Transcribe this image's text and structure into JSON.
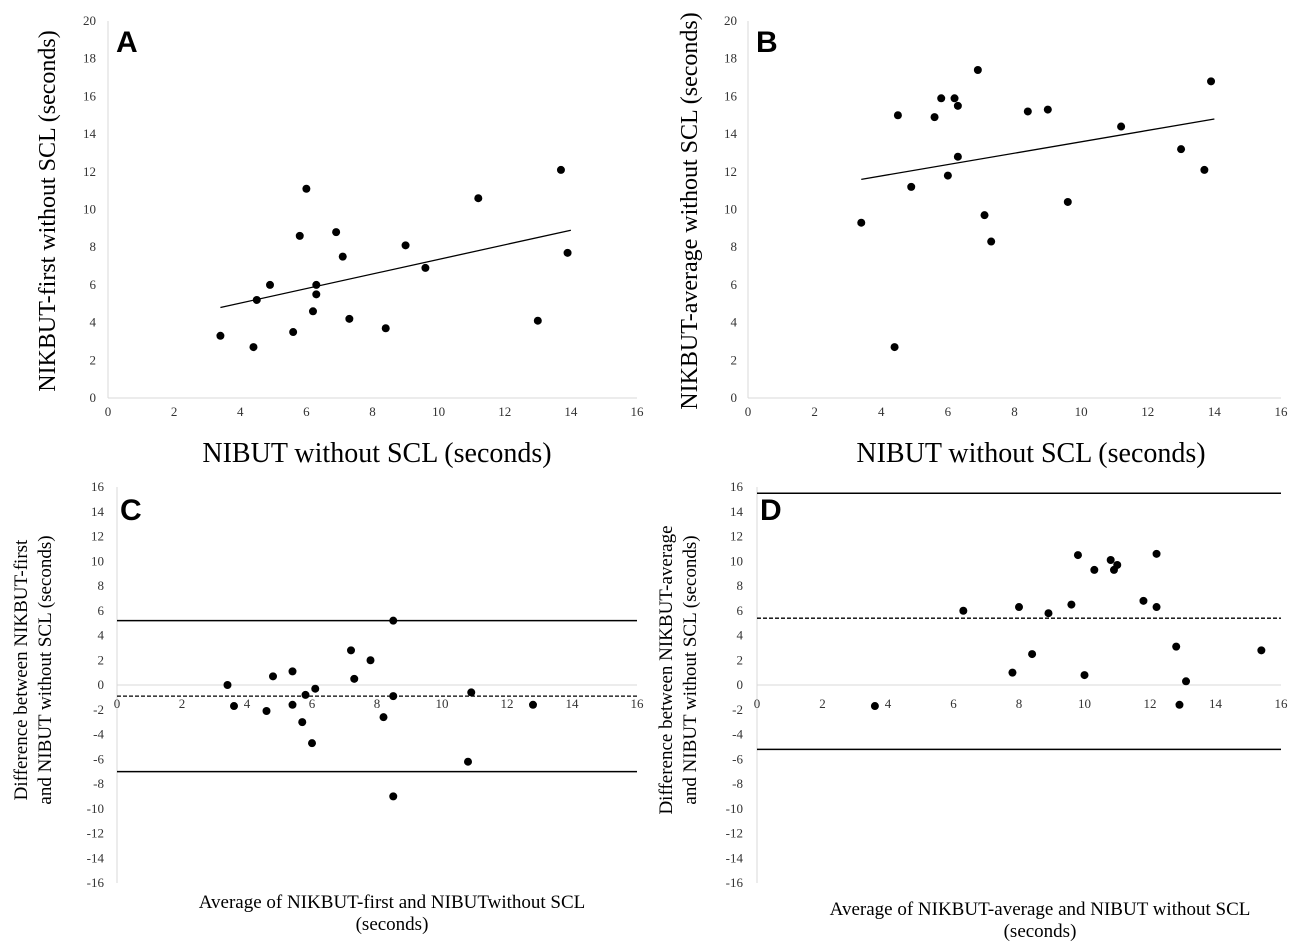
{
  "chart_data": [
    {
      "panel": "A",
      "type": "scatter",
      "xlabel": "NIBUT without SCL (seconds)",
      "ylabel": "NIKBUT-first without SCL (seconds)",
      "xlim": [
        0,
        16
      ],
      "ylim": [
        0,
        20
      ],
      "xticks": [
        0,
        2,
        4,
        6,
        8,
        10,
        12,
        14,
        16
      ],
      "yticks": [
        0,
        2,
        4,
        6,
        8,
        10,
        12,
        14,
        16,
        18,
        20
      ],
      "grid": false,
      "trendline": {
        "x": [
          3.4,
          14.0
        ],
        "y": [
          4.8,
          8.9
        ]
      },
      "points": [
        [
          3.4,
          3.3
        ],
        [
          4.4,
          2.7
        ],
        [
          4.5,
          5.2
        ],
        [
          4.9,
          6.0
        ],
        [
          5.6,
          3.5
        ],
        [
          5.8,
          8.6
        ],
        [
          6.0,
          11.1
        ],
        [
          6.2,
          4.6
        ],
        [
          6.3,
          6.0
        ],
        [
          6.3,
          5.5
        ],
        [
          6.9,
          8.8
        ],
        [
          7.1,
          7.5
        ],
        [
          7.3,
          4.2
        ],
        [
          8.4,
          3.7
        ],
        [
          9.0,
          8.1
        ],
        [
          9.6,
          6.9
        ],
        [
          11.2,
          10.6
        ],
        [
          13.0,
          4.1
        ],
        [
          13.7,
          12.1
        ],
        [
          13.9,
          7.7
        ]
      ]
    },
    {
      "panel": "B",
      "type": "scatter",
      "xlabel": "NIBUT without SCL (seconds)",
      "ylabel": "NIKBUT-average without SCL (seconds)",
      "xlim": [
        0,
        16
      ],
      "ylim": [
        0,
        20
      ],
      "xticks": [
        0,
        2,
        4,
        6,
        8,
        10,
        12,
        14,
        16
      ],
      "yticks": [
        0,
        2,
        4,
        6,
        8,
        10,
        12,
        14,
        16,
        18,
        20
      ],
      "grid": false,
      "trendline": {
        "x": [
          3.4,
          14.0
        ],
        "y": [
          11.6,
          14.8
        ]
      },
      "points": [
        [
          3.4,
          9.3
        ],
        [
          4.4,
          2.7
        ],
        [
          4.5,
          15.0
        ],
        [
          4.9,
          11.2
        ],
        [
          5.6,
          14.9
        ],
        [
          5.8,
          15.9
        ],
        [
          6.0,
          11.8
        ],
        [
          6.2,
          15.9
        ],
        [
          6.3,
          15.5
        ],
        [
          6.3,
          12.8
        ],
        [
          6.9,
          17.4
        ],
        [
          7.1,
          9.7
        ],
        [
          7.3,
          8.3
        ],
        [
          8.4,
          15.2
        ],
        [
          9.0,
          15.3
        ],
        [
          9.6,
          10.4
        ],
        [
          11.2,
          14.4
        ],
        [
          13.0,
          13.2
        ],
        [
          13.7,
          12.1
        ],
        [
          13.9,
          16.8
        ]
      ]
    },
    {
      "panel": "C",
      "type": "scatter",
      "xlabel_line1": "Average of NIKBUT-first and NIBUTwithout SCL",
      "xlabel_line2": "(seconds)",
      "ylabel_line1": "Difference between NIKBUT-first",
      "ylabel_line2": "and NIBUT without SCL (seconds)",
      "xlim": [
        0,
        16
      ],
      "ylim": [
        -16,
        16
      ],
      "xticks": [
        0,
        2,
        4,
        6,
        8,
        10,
        12,
        14,
        16
      ],
      "yticks": [
        -16,
        -14,
        -12,
        -10,
        -8,
        -6,
        -4,
        -2,
        0,
        2,
        4,
        6,
        8,
        10,
        12,
        14,
        16
      ],
      "grid": false,
      "mean_difference": -0.9,
      "limits_of_agreement": [
        5.2,
        -7.0
      ],
      "points": [
        [
          3.4,
          0.0
        ],
        [
          3.6,
          -1.7
        ],
        [
          4.6,
          -2.1
        ],
        [
          4.8,
          0.7
        ],
        [
          5.4,
          -1.6
        ],
        [
          5.4,
          1.1
        ],
        [
          5.7,
          -3.0
        ],
        [
          5.8,
          -0.8
        ],
        [
          6.0,
          -4.7
        ],
        [
          6.1,
          -0.3
        ],
        [
          7.2,
          2.8
        ],
        [
          7.3,
          0.5
        ],
        [
          7.8,
          2.0
        ],
        [
          8.2,
          -2.6
        ],
        [
          8.5,
          -9.0
        ],
        [
          8.5,
          -0.9
        ],
        [
          8.5,
          5.2
        ],
        [
          10.8,
          -6.2
        ],
        [
          10.9,
          -0.6
        ],
        [
          12.8,
          -1.6
        ]
      ]
    },
    {
      "panel": "D",
      "type": "scatter",
      "xlabel_line1": "Average of NIKBUT-average and NIBUT without SCL",
      "xlabel_line2": "(seconds)",
      "ylabel_line1": "Difference between NIKBUT-average",
      "ylabel_line2": "and NIBUT without SCL (seconds)",
      "xlim": [
        0,
        16
      ],
      "ylim": [
        -16,
        16
      ],
      "xticks": [
        0,
        2,
        4,
        6,
        8,
        10,
        12,
        14,
        16
      ],
      "yticks": [
        -16,
        -14,
        -12,
        -10,
        -8,
        -6,
        -4,
        -2,
        0,
        2,
        4,
        6,
        8,
        10,
        12,
        14,
        16
      ],
      "grid": false,
      "mean_difference": 5.4,
      "limits_of_agreement": [
        15.5,
        -5.2
      ],
      "points": [
        [
          3.6,
          -1.7
        ],
        [
          6.3,
          6.0
        ],
        [
          7.8,
          1.0
        ],
        [
          8.0,
          6.3
        ],
        [
          8.4,
          2.5
        ],
        [
          8.9,
          5.8
        ],
        [
          9.6,
          6.5
        ],
        [
          9.8,
          10.5
        ],
        [
          10.0,
          0.8
        ],
        [
          10.3,
          9.3
        ],
        [
          10.8,
          10.1
        ],
        [
          10.9,
          9.3
        ],
        [
          11.0,
          9.7
        ],
        [
          11.8,
          6.8
        ],
        [
          12.2,
          10.6
        ],
        [
          12.2,
          6.3
        ],
        [
          12.8,
          3.1
        ],
        [
          12.9,
          -1.6
        ],
        [
          13.1,
          0.3
        ],
        [
          15.4,
          2.8
        ]
      ]
    }
  ]
}
